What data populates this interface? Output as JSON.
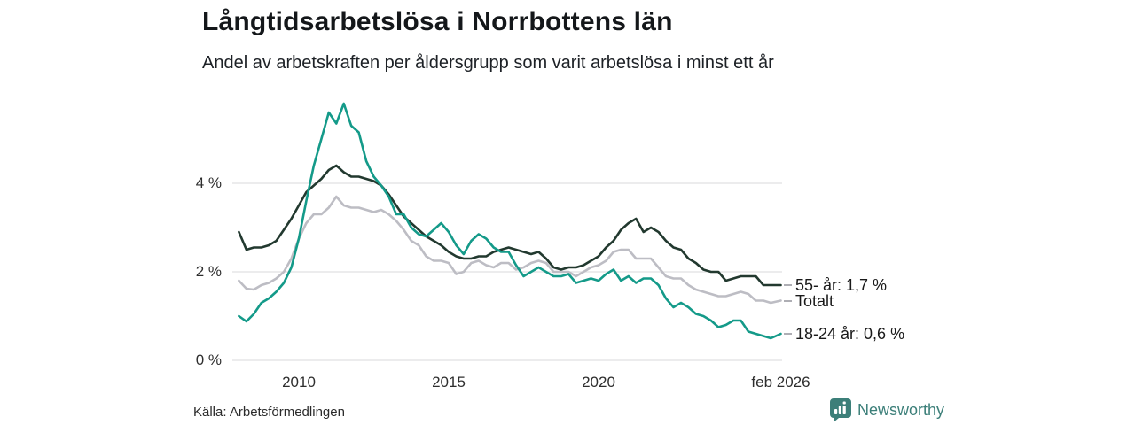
{
  "chart_data": {
    "type": "line",
    "title": "Långtidsarbetslösa i Norrbottens län",
    "subtitle": "Andel av arbetskraften per åldersgrupp som varit arbetslösa i minst ett år",
    "unit": "%",
    "grid": "horizontal",
    "legend_position": "end-of-line",
    "ylim": [
      0,
      6.1
    ],
    "xlim": [
      2008,
      2026.17
    ],
    "x": [
      2008,
      2008.25,
      2008.5,
      2008.75,
      2009,
      2009.25,
      2009.5,
      2009.75,
      2010,
      2010.25,
      2010.5,
      2010.75,
      2011,
      2011.25,
      2011.5,
      2011.75,
      2012,
      2012.25,
      2012.5,
      2012.75,
      2013,
      2013.25,
      2013.5,
      2013.75,
      2014,
      2014.25,
      2014.5,
      2014.75,
      2015,
      2015.25,
      2015.5,
      2015.75,
      2016,
      2016.25,
      2016.5,
      2016.75,
      2017,
      2017.25,
      2017.5,
      2017.75,
      2018,
      2018.25,
      2018.5,
      2018.75,
      2019,
      2019.25,
      2019.5,
      2019.75,
      2020,
      2020.25,
      2020.5,
      2020.75,
      2021,
      2021.25,
      2021.5,
      2021.75,
      2022,
      2022.25,
      2022.5,
      2022.75,
      2023,
      2023.25,
      2023.5,
      2023.75,
      2024,
      2024.25,
      2024.5,
      2024.75,
      2025,
      2025.25,
      2025.5,
      2025.75,
      2026.08
    ],
    "series": [
      {
        "name": "55- år",
        "end_label": "55- år: 1,7 %",
        "last_value_label": "1,7 %",
        "color": "#22392f",
        "z": 2,
        "values": [
          2.9,
          2.5,
          2.55,
          2.55,
          2.6,
          2.7,
          2.95,
          3.2,
          3.5,
          3.8,
          3.95,
          4.1,
          4.3,
          4.4,
          4.25,
          4.15,
          4.15,
          4.1,
          4.05,
          3.95,
          3.75,
          3.5,
          3.25,
          3.1,
          2.95,
          2.8,
          2.7,
          2.6,
          2.45,
          2.35,
          2.3,
          2.3,
          2.35,
          2.35,
          2.45,
          2.5,
          2.55,
          2.5,
          2.45,
          2.4,
          2.45,
          2.3,
          2.1,
          2.05,
          2.1,
          2.1,
          2.15,
          2.25,
          2.35,
          2.55,
          2.7,
          2.95,
          3.1,
          3.2,
          2.9,
          3.0,
          2.9,
          2.7,
          2.55,
          2.5,
          2.3,
          2.2,
          2.05,
          2.0,
          2.0,
          1.8,
          1.85,
          1.9,
          1.9,
          1.9,
          1.7,
          1.7,
          1.7
        ]
      },
      {
        "name": "Totalt",
        "end_label": "Totalt",
        "last_value_label": "",
        "color": "#bdbdc4",
        "z": 1,
        "values": [
          1.8,
          1.62,
          1.6,
          1.7,
          1.75,
          1.85,
          2.0,
          2.3,
          2.75,
          3.1,
          3.3,
          3.3,
          3.45,
          3.7,
          3.5,
          3.45,
          3.45,
          3.4,
          3.35,
          3.4,
          3.3,
          3.15,
          2.95,
          2.7,
          2.6,
          2.35,
          2.25,
          2.25,
          2.2,
          1.95,
          2.0,
          2.2,
          2.25,
          2.15,
          2.1,
          2.2,
          2.2,
          2.05,
          2.1,
          2.2,
          2.25,
          2.2,
          2.0,
          2.0,
          2.0,
          1.9,
          2.0,
          2.1,
          2.15,
          2.25,
          2.45,
          2.5,
          2.5,
          2.3,
          2.3,
          2.3,
          2.1,
          1.9,
          1.85,
          1.85,
          1.7,
          1.6,
          1.55,
          1.5,
          1.45,
          1.45,
          1.5,
          1.55,
          1.5,
          1.35,
          1.35,
          1.3,
          1.35
        ]
      },
      {
        "name": "18-24 år",
        "end_label": "18-24 år: 0,6 %",
        "last_value_label": "0,6 %",
        "color": "#149a89",
        "z": 3,
        "values": [
          1.0,
          0.88,
          1.05,
          1.3,
          1.4,
          1.55,
          1.75,
          2.1,
          2.75,
          3.6,
          4.4,
          5.0,
          5.6,
          5.35,
          5.8,
          5.3,
          5.15,
          4.5,
          4.15,
          3.95,
          3.7,
          3.3,
          3.3,
          3.0,
          2.85,
          2.8,
          2.95,
          3.1,
          2.9,
          2.6,
          2.4,
          2.7,
          2.85,
          2.75,
          2.55,
          2.45,
          2.45,
          2.15,
          1.9,
          2.0,
          2.1,
          2.0,
          1.9,
          1.9,
          1.95,
          1.75,
          1.8,
          1.85,
          1.8,
          1.95,
          2.05,
          1.8,
          1.9,
          1.75,
          1.85,
          1.85,
          1.7,
          1.4,
          1.2,
          1.3,
          1.2,
          1.05,
          1.0,
          0.9,
          0.75,
          0.8,
          0.9,
          0.9,
          0.65,
          0.6,
          0.55,
          0.5,
          0.6
        ]
      }
    ],
    "yticks": [
      {
        "value": 0,
        "label": "0 %"
      },
      {
        "value": 2,
        "label": "2 %"
      },
      {
        "value": 4,
        "label": "4 %"
      }
    ],
    "xticks": [
      {
        "value": 2010,
        "label": "2010"
      },
      {
        "value": 2015,
        "label": "2015"
      },
      {
        "value": 2020,
        "label": "2020"
      },
      {
        "value": 2026.08,
        "label": "feb 2026"
      }
    ]
  },
  "footer": {
    "source": "Källa: Arbetsförmedlingen",
    "brand": "Newsworthy"
  },
  "colors": {
    "accent_teal": "#149a89",
    "dark_green": "#22392f",
    "total_gray": "#bdbdc4",
    "grid_gray": "#e0e0e2",
    "brand_teal": "#3c7f79",
    "text_dark": "#14171a"
  }
}
